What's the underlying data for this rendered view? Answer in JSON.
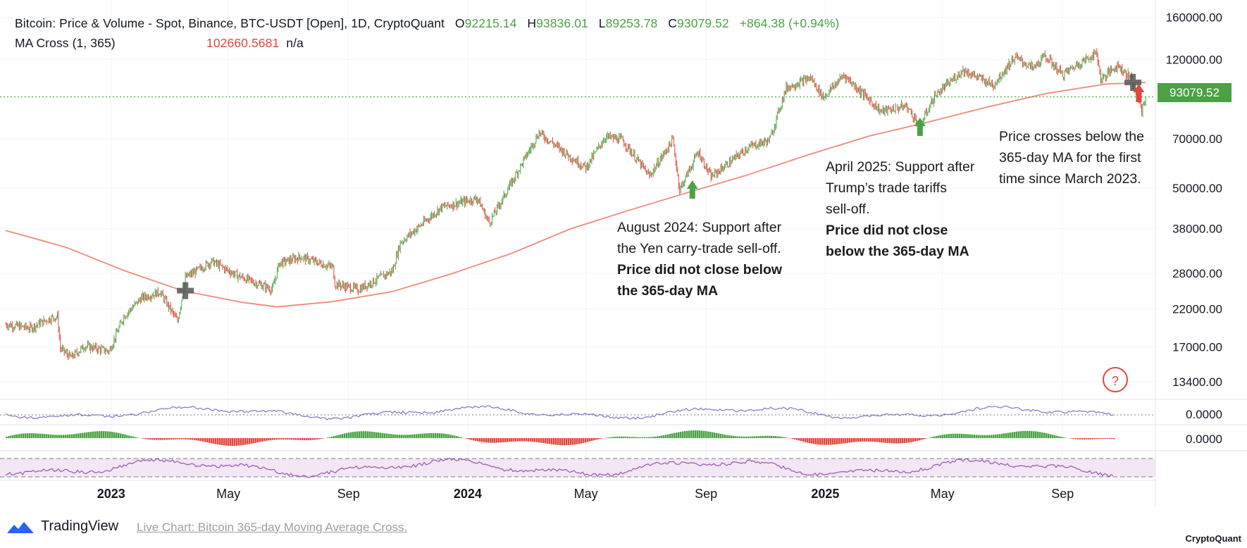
{
  "header": {
    "symbol_line": "Bitcoin: Price & Volume - Spot, Binance, BTC-USDT [Open], 1D, CryptoQuant",
    "open_label": "O",
    "open_value": "92215.14",
    "high_label": "H",
    "high_value": "93836.01",
    "low_label": "L",
    "low_value": "89253.78",
    "close_label": "C",
    "close_value": "93079.52",
    "change": "+864.38 (+0.94%)",
    "indicator_name": "MA Cross (1, 365)",
    "indicator_value": "102660.5681",
    "indicator_extra": "n/a"
  },
  "price_tag": "93079.52",
  "annotations": {
    "aug2024": {
      "text1": "August 2024: Support after",
      "text2": "the Yen carry-trade sell-off.",
      "bold1": "Price did not close below",
      "bold2": "the 365-day MA"
    },
    "apr2025": {
      "text1": "April 2025: Support after",
      "text2": "Trump’s trade tariffs",
      "text3": "sell-off.",
      "bold1": "Price did not close",
      "bold2": "below the 365-day MA"
    },
    "cross": {
      "text1": "Price crosses below the",
      "text2": "365-day MA for the first",
      "text3": "time since March 2023."
    }
  },
  "footer": {
    "brand": "TradingView",
    "link": "Live Chart: Bitcoin 365-day Moving Average Cross.",
    "watermark": "CryptoQuant"
  },
  "help_glyph": "?",
  "colors": {
    "up": "#4ca145",
    "down": "#e0483c",
    "ma_line": "#ef8a7a",
    "osc_line": "#8e7cc3",
    "rsi_line": "#9c5fb5",
    "rsi_band": "#f3e6f5",
    "price_tag": "#4ca145"
  },
  "chart_data": {
    "type": "line",
    "title": "Bitcoin: Price & Volume - Spot, Binance, BTC-USDT [Open], 1D, CryptoQuant",
    "y_scale": "log",
    "ylim": [
      12000,
      165000
    ],
    "y_ticks": [
      "160000.00",
      "120000.00",
      "93079.52",
      "70000.00",
      "50000.00",
      "38000.00",
      "28000.00",
      "22000.00",
      "17000.00",
      "13400.00"
    ],
    "y_tick_values": [
      160000,
      120000,
      70000,
      50000,
      38000,
      28000,
      22000,
      17000,
      13400
    ],
    "x_ticks": [
      "2023",
      "May",
      "Sep",
      "2024",
      "May",
      "Sep",
      "2025",
      "May",
      "Sep"
    ],
    "x_tick_dates": [
      "2023-01-01",
      "2023-05-01",
      "2023-09-01",
      "2024-01-01",
      "2024-05-01",
      "2024-09-01",
      "2025-01-01",
      "2025-05-01",
      "2025-09-01"
    ],
    "xlim": [
      "2022-09-15",
      "2025-12-05"
    ],
    "series": [
      {
        "name": "",
        "style": "price",
        "points": [
          [
            "2022-09-15",
            19800
          ],
          [
            "2022-10-10",
            19300
          ],
          [
            "2022-10-30",
            20600
          ],
          [
            "2022-11-07",
            20900
          ],
          [
            "2022-11-10",
            16800
          ],
          [
            "2022-11-21",
            15800
          ],
          [
            "2022-12-05",
            17100
          ],
          [
            "2022-12-30",
            16500
          ],
          [
            "2023-01-14",
            20900
          ],
          [
            "2023-02-01",
            23700
          ],
          [
            "2023-02-20",
            24700
          ],
          [
            "2023-03-10",
            20200
          ],
          [
            "2023-03-18",
            27200
          ],
          [
            "2023-04-14",
            30400
          ],
          [
            "2023-05-10",
            27600
          ],
          [
            "2023-06-15",
            25100
          ],
          [
            "2023-06-22",
            30000
          ],
          [
            "2023-07-14",
            31300
          ],
          [
            "2023-08-16",
            29200
          ],
          [
            "2023-08-18",
            26100
          ],
          [
            "2023-09-11",
            25100
          ],
          [
            "2023-10-16",
            28500
          ],
          [
            "2023-10-24",
            34500
          ],
          [
            "2023-12-05",
            43900
          ],
          [
            "2024-01-11",
            46700
          ],
          [
            "2024-01-23",
            39500
          ],
          [
            "2024-02-15",
            52000
          ],
          [
            "2024-03-14",
            73000
          ],
          [
            "2024-04-17",
            61300
          ],
          [
            "2024-05-01",
            57500
          ],
          [
            "2024-05-21",
            71000
          ],
          [
            "2024-06-07",
            69500
          ],
          [
            "2024-07-05",
            54300
          ],
          [
            "2024-07-29",
            69500
          ],
          [
            "2024-08-05",
            49500
          ],
          [
            "2024-08-24",
            64100
          ],
          [
            "2024-09-06",
            53900
          ],
          [
            "2024-10-14",
            66000
          ],
          [
            "2024-11-05",
            69300
          ],
          [
            "2024-11-22",
            99000
          ],
          [
            "2024-12-17",
            106000
          ],
          [
            "2024-12-30",
            92700
          ],
          [
            "2025-01-20",
            108000
          ],
          [
            "2025-02-27",
            84300
          ],
          [
            "2025-03-25",
            87500
          ],
          [
            "2025-04-08",
            76300
          ],
          [
            "2025-04-23",
            93500
          ],
          [
            "2025-05-22",
            111700
          ],
          [
            "2025-06-22",
            100900
          ],
          [
            "2025-07-14",
            122000
          ],
          [
            "2025-08-02",
            113000
          ],
          [
            "2025-08-14",
            123000
          ],
          [
            "2025-09-01",
            108300
          ],
          [
            "2025-09-18",
            117000
          ],
          [
            "2025-10-06",
            125500
          ],
          [
            "2025-10-10",
            104700
          ],
          [
            "2025-10-27",
            115500
          ],
          [
            "2025-11-10",
            106000
          ],
          [
            "2025-11-18",
            91000
          ],
          [
            "2025-11-21",
            84500
          ],
          [
            "2025-11-25",
            93079.52
          ]
        ]
      },
      {
        "name": "MA Cross (1, 365)",
        "style": "ma",
        "points": [
          [
            "2022-09-15",
            37500
          ],
          [
            "2022-11-15",
            33500
          ],
          [
            "2023-01-15",
            28500
          ],
          [
            "2023-03-15",
            24900
          ],
          [
            "2023-05-15",
            23000
          ],
          [
            "2023-06-20",
            22300
          ],
          [
            "2023-08-15",
            23100
          ],
          [
            "2023-10-15",
            24700
          ],
          [
            "2023-12-15",
            27900
          ],
          [
            "2024-02-15",
            32100
          ],
          [
            "2024-04-15",
            37900
          ],
          [
            "2024-06-15",
            43100
          ],
          [
            "2024-08-15",
            48700
          ],
          [
            "2024-10-15",
            54900
          ],
          [
            "2024-12-15",
            62800
          ],
          [
            "2025-02-15",
            71300
          ],
          [
            "2025-04-15",
            78200
          ],
          [
            "2025-06-15",
            86700
          ],
          [
            "2025-08-15",
            95200
          ],
          [
            "2025-10-15",
            101500
          ],
          [
            "2025-11-25",
            102660.5681
          ]
        ]
      }
    ],
    "arrows": [
      {
        "date": "2024-08-05",
        "direction": "up",
        "color": "up"
      },
      {
        "date": "2025-04-08",
        "direction": "up",
        "color": "up"
      },
      {
        "date": "2025-11-18",
        "direction": "up",
        "color": "down"
      }
    ],
    "cross_markers": [
      "2023-03-18",
      "2025-11-12"
    ],
    "sub_panels": [
      {
        "value_label": "0.0000",
        "kind": "oscillator"
      },
      {
        "value_label": "0.0000",
        "kind": "histogram"
      },
      {
        "value_label": "",
        "kind": "rsi"
      }
    ]
  }
}
